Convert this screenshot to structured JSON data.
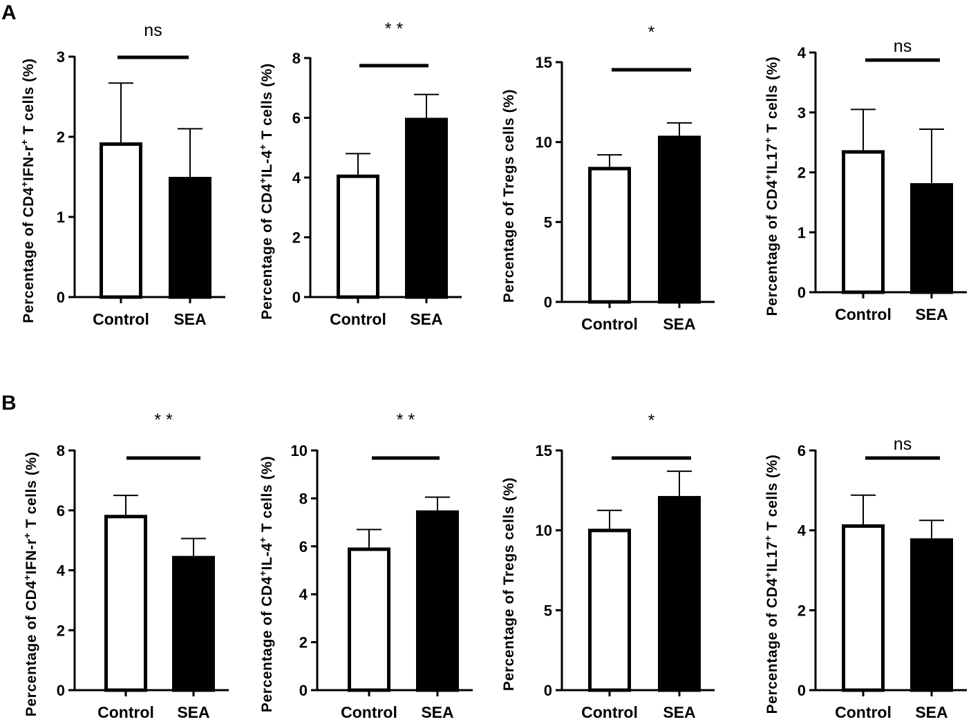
{
  "panel_labels": [
    "A",
    "B"
  ],
  "chart_data": [
    {
      "type": "bar",
      "panel": "A",
      "categories": [
        "Control",
        "SEA"
      ],
      "values": [
        1.93,
        1.5
      ],
      "errors": [
        0.74,
        0.6
      ],
      "bar_fill": [
        "#ffffff",
        "#000000"
      ],
      "ylim": [
        0,
        3
      ],
      "yticks": [
        "0",
        "1",
        "2",
        "3"
      ],
      "ylabel": {
        "main": "Percentage of CD4",
        "s1": "+",
        "mid": "IFN-r",
        "s2": "+",
        "tail": "T cells (%)"
      },
      "significance": "ns"
    },
    {
      "type": "bar",
      "panel": "A",
      "categories": [
        "Control",
        "SEA"
      ],
      "values": [
        4.1,
        6.0
      ],
      "errors": [
        0.7,
        0.78
      ],
      "bar_fill": [
        "#ffffff",
        "#000000"
      ],
      "ylim": [
        0,
        8
      ],
      "yticks": [
        "0",
        "2",
        "4",
        "6",
        "8"
      ],
      "ylabel": {
        "main": "Percentage of CD4",
        "s1": "+",
        "mid": "IL-4",
        "s2": "+",
        "tail": "T cells (%)"
      },
      "significance": "**"
    },
    {
      "type": "bar",
      "panel": "A",
      "categories": [
        "Control",
        "SEA"
      ],
      "values": [
        8.45,
        10.4
      ],
      "errors": [
        0.75,
        0.8
      ],
      "bar_fill": [
        "#ffffff",
        "#000000"
      ],
      "ylim": [
        0,
        15
      ],
      "yticks": [
        "0",
        "5",
        "10",
        "15"
      ],
      "ylabel": {
        "main": "Percentage of Tregs cells (%)",
        "s1": "",
        "mid": "",
        "s2": "",
        "tail": ""
      },
      "significance": "*"
    },
    {
      "type": "bar",
      "panel": "A",
      "categories": [
        "Control",
        "SEA"
      ],
      "values": [
        2.37,
        1.82
      ],
      "errors": [
        0.68,
        0.9
      ],
      "bar_fill": [
        "#ffffff",
        "#000000"
      ],
      "ylim": [
        0,
        4
      ],
      "yticks": [
        "0",
        "1",
        "2",
        "3",
        "4"
      ],
      "ylabel": {
        "main": "Percentage of CD4",
        "s1": "+",
        "mid": "IL17",
        "s2": "+",
        "tail": "T cells (%)"
      },
      "significance": "ns"
    },
    {
      "type": "bar",
      "panel": "B",
      "categories": [
        "Control",
        "SEA"
      ],
      "values": [
        5.85,
        4.48
      ],
      "errors": [
        0.65,
        0.58
      ],
      "bar_fill": [
        "#ffffff",
        "#000000"
      ],
      "ylim": [
        0,
        8
      ],
      "yticks": [
        "0",
        "2",
        "4",
        "6",
        "8"
      ],
      "ylabel": {
        "main": "Percentage of CD4",
        "s1": "+",
        "mid": "IFN-r",
        "s2": "+",
        "tail": "T cells (%)"
      },
      "significance": "**"
    },
    {
      "type": "bar",
      "panel": "B",
      "categories": [
        "Control",
        "SEA"
      ],
      "values": [
        5.95,
        7.5
      ],
      "errors": [
        0.75,
        0.55
      ],
      "bar_fill": [
        "#ffffff",
        "#000000"
      ],
      "ylim": [
        0,
        10
      ],
      "yticks": [
        "0",
        "2",
        "4",
        "6",
        "8",
        "10"
      ],
      "ylabel": {
        "main": "Percentage of CD4",
        "s1": "+",
        "mid": "IL-4",
        "s2": "+",
        "tail": "T cells (%)"
      },
      "significance": "**"
    },
    {
      "type": "bar",
      "panel": "B",
      "categories": [
        "Control",
        "SEA"
      ],
      "values": [
        10.1,
        12.15
      ],
      "errors": [
        1.15,
        1.55
      ],
      "bar_fill": [
        "#ffffff",
        "#000000"
      ],
      "ylim": [
        0,
        15
      ],
      "yticks": [
        "0",
        "5",
        "10",
        "15"
      ],
      "ylabel": {
        "main": "Percentage of Tregs cells (%)",
        "s1": "",
        "mid": "",
        "s2": "",
        "tail": ""
      },
      "significance": "*"
    },
    {
      "type": "bar",
      "panel": "B",
      "categories": [
        "Control",
        "SEA"
      ],
      "values": [
        4.15,
        3.8
      ],
      "errors": [
        0.73,
        0.45
      ],
      "bar_fill": [
        "#ffffff",
        "#000000"
      ],
      "ylim": [
        0,
        6
      ],
      "yticks": [
        "0",
        "2",
        "4",
        "6"
      ],
      "ylabel": {
        "main": "Percentage of CD4",
        "s1": "+",
        "mid": "IL17",
        "s2": "+",
        "tail": "T cells (%)"
      },
      "significance": "ns"
    }
  ]
}
